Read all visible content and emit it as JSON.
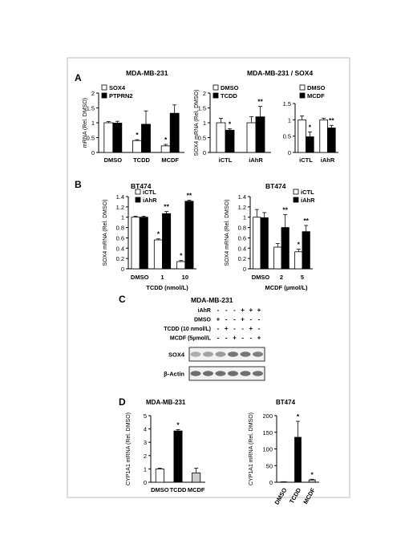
{
  "figure": {
    "panel_labels": [
      "A",
      "B",
      "C",
      "D"
    ],
    "headers": {
      "a_left": "MDA-MB-231",
      "a_right": "MDA-MB-231 / SOX4",
      "b_left": "BT474",
      "b_right": "BT474",
      "c": "MDA-MB-231",
      "d_left": "MDA-MB-231",
      "d_right": "BT474"
    }
  },
  "chart_data": [
    {
      "id": "A1",
      "type": "bar",
      "categories": [
        "DMSO",
        "TCDD",
        "MCDF"
      ],
      "series": [
        {
          "name": "SOX4",
          "color": "#ffffff",
          "values": [
            1.0,
            0.4,
            0.22
          ],
          "errors": [
            0.04,
            0.03,
            0.05
          ]
        },
        {
          "name": "PTPRN2",
          "color": "#000000",
          "values": [
            0.99,
            0.95,
            1.32
          ],
          "errors": [
            0.06,
            0.45,
            0.28
          ]
        }
      ],
      "ylabel": "mRNA (Rel. DMSO)",
      "ylim": [
        0,
        2
      ],
      "yticks": [
        "0",
        "0.5",
        "1",
        "1.5",
        "2"
      ],
      "annotations": [
        "*",
        "*"
      ],
      "legend": "top-left"
    },
    {
      "id": "A2",
      "type": "bar",
      "categories": [
        "iCTL",
        "iAhR"
      ],
      "series": [
        {
          "name": "DMSO",
          "color": "#ffffff",
          "values": [
            1.0,
            1.0
          ],
          "errors": [
            0.15,
            0.2
          ]
        },
        {
          "name": "TCDD",
          "color": "#000000",
          "values": [
            0.75,
            1.2
          ],
          "errors": [
            0.05,
            0.35
          ]
        }
      ],
      "ylabel": "SOX4 mRNA (Rel. DMSO)",
      "ylim": [
        0,
        2
      ],
      "yticks": [
        "0",
        "0.5",
        "1",
        "1.5",
        "2"
      ],
      "annotations": [
        "*",
        "**"
      ],
      "legend": "top-left"
    },
    {
      "id": "A3",
      "type": "bar",
      "categories": [
        "iCTL",
        "iAhR"
      ],
      "series": [
        {
          "name": "DMSO",
          "color": "#ffffff",
          "values": [
            1.0,
            1.0
          ],
          "errors": [
            0.12,
            0.05
          ]
        },
        {
          "name": "MCDF",
          "color": "#000000",
          "values": [
            0.48,
            0.75
          ],
          "errors": [
            0.15,
            0.08
          ]
        }
      ],
      "ylim": [
        0,
        1.5
      ],
      "yticks": [
        "0",
        "0.5",
        "1",
        "1.5"
      ],
      "annotations": [
        "*",
        "**"
      ],
      "legend": "top-right"
    },
    {
      "id": "B1",
      "type": "bar",
      "categories": [
        "DMSO",
        "1",
        "10"
      ],
      "series": [
        {
          "name": "iCTL",
          "color": "#ffffff",
          "values": [
            1.0,
            0.56,
            0.14
          ],
          "errors": [
            0.02,
            0.02,
            0.02
          ]
        },
        {
          "name": "iAhR",
          "color": "#000000",
          "values": [
            1.0,
            1.07,
            1.31
          ],
          "errors": [
            0.02,
            0.04,
            0.02
          ]
        }
      ],
      "ylabel": "SOX4 mRNA (Rel. DMSO)",
      "xlabel": "TCDD (nmol/L)",
      "ylim": [
        0,
        1.4
      ],
      "yticks": [
        "0",
        "0.2",
        "0.4",
        "0.6",
        "0.8",
        "1",
        "1.2",
        "1.4"
      ],
      "annotations": [
        "*",
        "**",
        "*",
        "**"
      ],
      "legend": "top-left"
    },
    {
      "id": "B2",
      "type": "bar",
      "categories": [
        "DMSO",
        "2",
        "5"
      ],
      "series": [
        {
          "name": "iCTL",
          "color": "#ffffff",
          "values": [
            1.0,
            0.42,
            0.33
          ],
          "errors": [
            0.15,
            0.07,
            0.05
          ]
        },
        {
          "name": "iAhR",
          "color": "#000000",
          "values": [
            0.99,
            0.8,
            0.72
          ],
          "errors": [
            0.1,
            0.25,
            0.12
          ]
        }
      ],
      "ylabel": "SOX4 mRNA (Rel. DMSO)",
      "xlabel": "MCDF (µmol/L)",
      "ylim": [
        0,
        1.4
      ],
      "yticks": [
        "0",
        "0.2",
        "0.4",
        "0.6",
        "0.8",
        "1",
        "1.2",
        "1.4"
      ],
      "annotations": [
        "**",
        "*",
        "**"
      ],
      "legend": "top-right"
    },
    {
      "id": "D1",
      "type": "bar",
      "categories": [
        "DMSO",
        "TCDD",
        "MCDF"
      ],
      "values": [
        1.0,
        3.85,
        0.7
      ],
      "errors": [
        0.05,
        0.1,
        0.35
      ],
      "colors": [
        "#ffffff",
        "#000000",
        "#cccccc"
      ],
      "ylabel": "CYP1A1 mRNA (Rel. DMSO)",
      "ylim": [
        0,
        5
      ],
      "yticks": [
        "0",
        "1",
        "2",
        "3",
        "4",
        "5"
      ],
      "annotations": [
        "*"
      ]
    },
    {
      "id": "D2",
      "type": "bar",
      "categories": [
        "DMSO",
        "TCDD",
        "MCDF"
      ],
      "values": [
        1,
        135,
        7
      ],
      "errors": [
        0.5,
        48,
        2
      ],
      "colors": [
        "#ffffff",
        "#000000",
        "#cccccc"
      ],
      "ylabel": "CYP1A1 mRNA (Rel. DMSO)",
      "ylim": [
        0,
        200
      ],
      "yticks": [
        "0",
        "50",
        "100",
        "150",
        "200"
      ],
      "annotations": [
        "*",
        "*"
      ]
    }
  ],
  "western": {
    "rows": [
      {
        "label": "iAhR",
        "marks": [
          "-",
          "-",
          "-",
          "+",
          "+",
          "+"
        ]
      },
      {
        "label": "DMSO",
        "marks": [
          "+",
          "-",
          "-",
          "+",
          "-",
          "-"
        ]
      },
      {
        "label": "TCDD (10 nmol/L)",
        "marks": [
          "-",
          "+",
          "-",
          "-",
          "+",
          "-"
        ]
      },
      {
        "label": "MCDF (5µmol/L",
        "marks": [
          "-",
          "-",
          "+",
          "-",
          "-",
          "+"
        ]
      }
    ],
    "blots": [
      {
        "label": "SOX4",
        "intensity": [
          0.45,
          0.5,
          0.55,
          0.75,
          0.75,
          0.7
        ]
      },
      {
        "label": "β-Actin",
        "intensity": [
          0.8,
          0.8,
          0.78,
          0.8,
          0.8,
          0.78
        ]
      }
    ]
  }
}
